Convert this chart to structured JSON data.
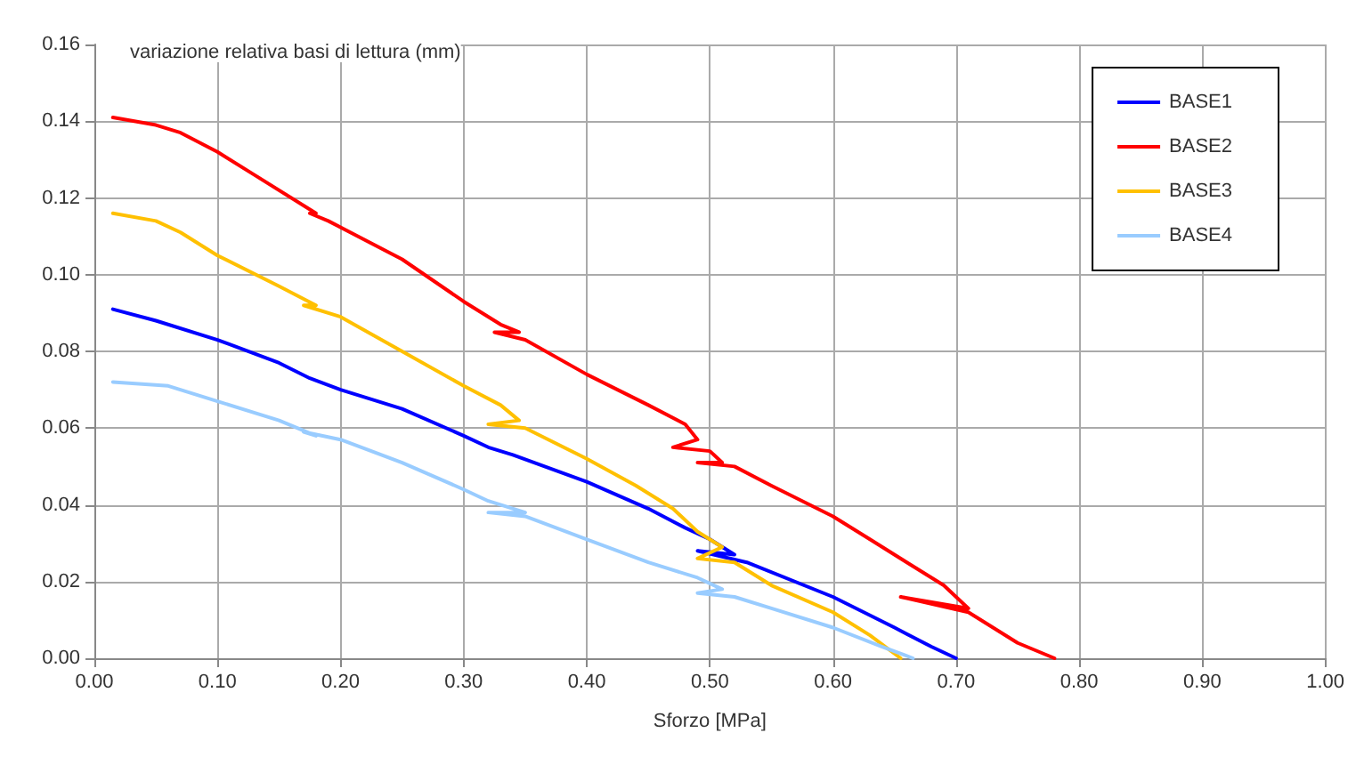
{
  "chart_data": {
    "type": "line",
    "ylabel": "variazione relativa basi di lettura (mm)",
    "xlabel": "Sforzo [MPa]",
    "legend": "top right",
    "grid": true,
    "marker": "none",
    "line_style": "solid",
    "xlim": [
      0,
      1
    ],
    "xticks": [
      {
        "value": 0,
        "label": "0.00"
      },
      {
        "value": 0.1,
        "label": "0.10"
      },
      {
        "value": 0.2,
        "label": "0.20"
      },
      {
        "value": 0.3,
        "label": "0.30"
      },
      {
        "value": 0.4,
        "label": "0.40"
      },
      {
        "value": 0.5,
        "label": "0.50"
      },
      {
        "value": 0.6,
        "label": "0.60"
      },
      {
        "value": 0.7,
        "label": "0.70"
      },
      {
        "value": 0.8,
        "label": "0.80"
      },
      {
        "value": 0.9,
        "label": "0.90"
      },
      {
        "value": 1,
        "label": "1.00"
      }
    ],
    "ylim": [
      0,
      0.16
    ],
    "yticks": [
      {
        "value": 0,
        "label": "0.00"
      },
      {
        "value": 0.02,
        "label": "0.02"
      },
      {
        "value": 0.04,
        "label": "0.04"
      },
      {
        "value": 0.06,
        "label": "0.06"
      },
      {
        "value": 0.08,
        "label": "0.08"
      },
      {
        "value": 0.1,
        "label": "0.10"
      },
      {
        "value": 0.12,
        "label": "0.12"
      },
      {
        "value": 0.14,
        "label": "0.14"
      },
      {
        "value": 0.16,
        "label": "0.16"
      }
    ],
    "series": [
      {
        "name": "BASE1",
        "color": "#0000ff",
        "x": [
          0.015,
          0.05,
          0.1,
          0.15,
          0.175,
          0.2,
          0.25,
          0.3,
          0.32,
          0.34,
          0.4,
          0.45,
          0.48,
          0.5,
          0.52,
          0.49,
          0.53,
          0.6,
          0.65,
          0.68,
          0.7
        ],
        "values": [
          0.091,
          0.088,
          0.083,
          0.077,
          0.073,
          0.07,
          0.065,
          0.058,
          0.055,
          0.053,
          0.046,
          0.039,
          0.034,
          0.031,
          0.027,
          0.028,
          0.025,
          0.016,
          0.008,
          0.003,
          0
        ]
      },
      {
        "name": "BASE2",
        "color": "#ff0000",
        "x": [
          0.015,
          0.05,
          0.07,
          0.1,
          0.13,
          0.18,
          0.175,
          0.19,
          0.25,
          0.3,
          0.33,
          0.345,
          0.325,
          0.35,
          0.4,
          0.45,
          0.48,
          0.49,
          0.47,
          0.5,
          0.51,
          0.49,
          0.52,
          0.55,
          0.6,
          0.63,
          0.66,
          0.69,
          0.71,
          0.655,
          0.71,
          0.75,
          0.78
        ],
        "values": [
          0.141,
          0.139,
          0.137,
          0.132,
          0.126,
          0.116,
          0.116,
          0.114,
          0.104,
          0.093,
          0.087,
          0.085,
          0.085,
          0.083,
          0.074,
          0.066,
          0.061,
          0.057,
          0.055,
          0.054,
          0.051,
          0.051,
          0.05,
          0.045,
          0.037,
          0.031,
          0.025,
          0.019,
          0.013,
          0.016,
          0.012,
          0.004,
          0
        ]
      },
      {
        "name": "BASE3",
        "color": "#ffc000",
        "x": [
          0.015,
          0.05,
          0.07,
          0.1,
          0.15,
          0.18,
          0.17,
          0.2,
          0.25,
          0.3,
          0.33,
          0.345,
          0.32,
          0.35,
          0.4,
          0.44,
          0.47,
          0.49,
          0.51,
          0.49,
          0.52,
          0.55,
          0.6,
          0.63,
          0.655
        ],
        "values": [
          0.116,
          0.114,
          0.111,
          0.105,
          0.097,
          0.092,
          0.092,
          0.089,
          0.08,
          0.071,
          0.066,
          0.062,
          0.061,
          0.06,
          0.052,
          0.045,
          0.039,
          0.033,
          0.029,
          0.026,
          0.025,
          0.019,
          0.012,
          0.006,
          0
        ]
      },
      {
        "name": "BASE4",
        "color": "#99ccff",
        "x": [
          0.015,
          0.06,
          0.1,
          0.15,
          0.18,
          0.17,
          0.2,
          0.25,
          0.3,
          0.32,
          0.35,
          0.32,
          0.35,
          0.4,
          0.45,
          0.49,
          0.51,
          0.49,
          0.52,
          0.55,
          0.6,
          0.64,
          0.665
        ],
        "values": [
          0.072,
          0.071,
          0.067,
          0.062,
          0.058,
          0.059,
          0.057,
          0.051,
          0.044,
          0.041,
          0.038,
          0.038,
          0.037,
          0.031,
          0.025,
          0.021,
          0.018,
          0.017,
          0.016,
          0.013,
          0.008,
          0.003,
          0
        ]
      }
    ]
  }
}
